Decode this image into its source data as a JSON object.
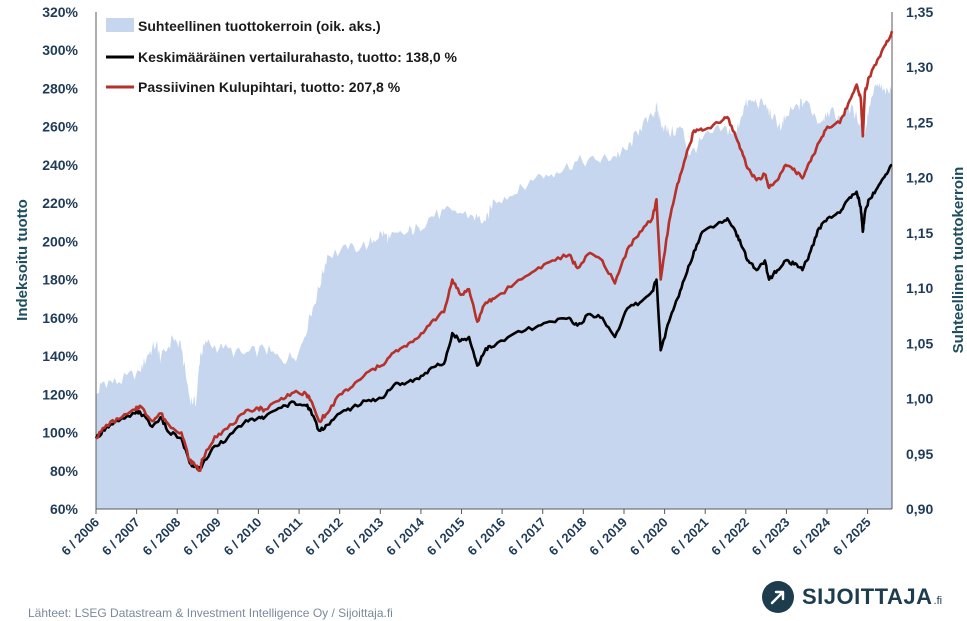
{
  "chart_data": {
    "type": "line",
    "title": "",
    "ylabel": "Indeksoitu tuotto",
    "y2label": "Suhteellinen tuottokerroin",
    "ylim": [
      60,
      320
    ],
    "y2lim": [
      0.9,
      1.35
    ],
    "yticks": [
      "60%",
      "80%",
      "100%",
      "120%",
      "140%",
      "160%",
      "180%",
      "200%",
      "220%",
      "240%",
      "260%",
      "280%",
      "300%",
      "320%"
    ],
    "y2ticks": [
      "0,90",
      "0,95",
      "1,00",
      "1,05",
      "1,10",
      "1,15",
      "1,20",
      "1,25",
      "1,30",
      "1,35"
    ],
    "xticks": [
      "6 / 2006",
      "6 / 2007",
      "6 / 2008",
      "6 / 2009",
      "6 / 2010",
      "6 / 2011",
      "6 / 2012",
      "6 / 2013",
      "6 / 2014",
      "6 / 2015",
      "6 / 2016",
      "6 / 2017",
      "6 / 2018",
      "6 / 2019",
      "6 / 2020",
      "6 / 2021",
      "6 / 2022",
      "6 / 2023",
      "6 / 2024",
      "6 / 2025"
    ],
    "legend_position": "top-left",
    "grid": false,
    "series": [
      {
        "name": "Suhteellinen tuottokerroin (oik. aks.)",
        "kind": "area",
        "axis": "right",
        "color": "#c5d6ee",
        "x": [
          2006.45,
          2006.6,
          2007.0,
          2007.5,
          2007.7,
          2007.9,
          2008.0,
          2008.3,
          2008.5,
          2008.7,
          2008.85,
          2008.95,
          2009.1,
          2009.5,
          2010.0,
          2010.5,
          2010.9,
          2011.3,
          2011.6,
          2011.8,
          2012.0,
          2012.5,
          2013.0,
          2013.3,
          2013.5,
          2013.9,
          2014.2,
          2014.5,
          2015.0,
          2015.5,
          2015.8,
          2016.0,
          2016.5,
          2017.0,
          2017.5,
          2018.0,
          2018.5,
          2018.9,
          2019.2,
          2019.5,
          2019.8,
          2019.9,
          2020.0,
          2020.2,
          2020.5,
          2020.7,
          2021.0,
          2021.5,
          2021.8,
          2022.0,
          2022.2,
          2022.5,
          2022.7,
          2022.9,
          2023.0,
          2023.3,
          2023.5,
          2023.8,
          2024.0,
          2024.3,
          2024.5,
          2024.8,
          2024.9,
          2025.0,
          2025.2,
          2025.4,
          2025.55
        ],
        "values": [
          1.0,
          1.015,
          1.015,
          1.025,
          1.04,
          1.05,
          1.035,
          1.055,
          1.045,
          1.0,
          0.995,
          1.04,
          1.05,
          1.045,
          1.04,
          1.045,
          1.035,
          1.04,
          1.075,
          1.1,
          1.13,
          1.135,
          1.14,
          1.15,
          1.145,
          1.15,
          1.155,
          1.165,
          1.17,
          1.165,
          1.16,
          1.18,
          1.185,
          1.2,
          1.205,
          1.215,
          1.215,
          1.22,
          1.225,
          1.245,
          1.255,
          1.265,
          1.25,
          1.24,
          1.245,
          1.22,
          1.235,
          1.245,
          1.24,
          1.265,
          1.27,
          1.265,
          1.255,
          1.245,
          1.255,
          1.265,
          1.27,
          1.25,
          1.26,
          1.255,
          1.265,
          1.25,
          1.24,
          1.265,
          1.285,
          1.275,
          1.28
        ]
      },
      {
        "name": "Keskimääräinen vertailurahasto, tuotto: 138,0 %",
        "kind": "line",
        "axis": "left",
        "color": "#000000",
        "x": [
          2006.45,
          2006.7,
          2007.0,
          2007.4,
          2007.5,
          2007.8,
          2008.0,
          2008.2,
          2008.5,
          2008.7,
          2008.8,
          2008.95,
          2009.0,
          2009.3,
          2009.6,
          2010.0,
          2010.3,
          2010.5,
          2010.9,
          2011.2,
          2011.5,
          2011.6,
          2011.8,
          2012.0,
          2012.3,
          2012.6,
          2013.0,
          2013.3,
          2013.6,
          2013.9,
          2014.2,
          2014.5,
          2014.8,
          2015.0,
          2015.2,
          2015.4,
          2015.6,
          2015.8,
          2016.0,
          2016.5,
          2017.0,
          2017.4,
          2017.8,
          2018.0,
          2018.3,
          2018.6,
          2018.9,
          2019.2,
          2019.5,
          2019.8,
          2019.9,
          2020.0,
          2020.2,
          2020.4,
          2020.6,
          2020.8,
          2021.0,
          2021.4,
          2021.6,
          2021.8,
          2021.95,
          2022.1,
          2022.3,
          2022.5,
          2022.6,
          2022.8,
          2023.0,
          2023.2,
          2023.4,
          2023.6,
          2023.8,
          2024.0,
          2024.3,
          2024.5,
          2024.7,
          2024.8,
          2024.85,
          2024.9,
          2025.0,
          2025.2,
          2025.4,
          2025.55
        ],
        "values": [
          97,
          103,
          106,
          110,
          111,
          103,
          108,
          100,
          97,
          84,
          82,
          81,
          83,
          93,
          97,
          105,
          107,
          108,
          113,
          116,
          114,
          112,
          101,
          104,
          110,
          113,
          117,
          118,
          125,
          126,
          128,
          134,
          136,
          152,
          148,
          150,
          135,
          144,
          145,
          152,
          155,
          158,
          160,
          156,
          162,
          160,
          150,
          165,
          168,
          174,
          180,
          143,
          158,
          170,
          182,
          195,
          205,
          210,
          212,
          205,
          197,
          190,
          185,
          190,
          180,
          185,
          190,
          188,
          185,
          195,
          207,
          212,
          215,
          222,
          226,
          218,
          205,
          215,
          222,
          228,
          235,
          240
        ]
      },
      {
        "name": "Passiivinen Kulupihtari, tuotto: 207,8 %",
        "kind": "line",
        "axis": "left",
        "color": "#b5312a",
        "x": [
          2006.45,
          2006.7,
          2007.0,
          2007.4,
          2007.5,
          2007.8,
          2008.0,
          2008.2,
          2008.5,
          2008.7,
          2008.8,
          2008.95,
          2009.0,
          2009.3,
          2009.6,
          2010.0,
          2010.3,
          2010.5,
          2010.9,
          2011.2,
          2011.5,
          2011.6,
          2011.8,
          2012.0,
          2012.3,
          2012.6,
          2013.0,
          2013.3,
          2013.6,
          2013.9,
          2014.2,
          2014.5,
          2014.8,
          2015.0,
          2015.2,
          2015.4,
          2015.6,
          2015.8,
          2016.0,
          2016.5,
          2017.0,
          2017.4,
          2017.8,
          2018.0,
          2018.3,
          2018.6,
          2018.9,
          2019.2,
          2019.5,
          2019.8,
          2019.9,
          2020.0,
          2020.2,
          2020.4,
          2020.6,
          2020.8,
          2021.0,
          2021.4,
          2021.6,
          2021.8,
          2021.95,
          2022.1,
          2022.3,
          2022.5,
          2022.6,
          2022.8,
          2023.0,
          2023.2,
          2023.4,
          2023.6,
          2023.8,
          2024.0,
          2024.3,
          2024.5,
          2024.7,
          2024.8,
          2024.85,
          2024.9,
          2025.0,
          2025.2,
          2025.4,
          2025.55
        ],
        "values": [
          97,
          104,
          107,
          112,
          114,
          106,
          110,
          104,
          100,
          85,
          84,
          80,
          86,
          98,
          102,
          110,
          113,
          112,
          118,
          121,
          120,
          117,
          106,
          110,
          120,
          124,
          132,
          135,
          142,
          145,
          150,
          158,
          163,
          180,
          172,
          175,
          158,
          168,
          170,
          178,
          185,
          190,
          193,
          186,
          194,
          190,
          178,
          196,
          205,
          212,
          222,
          180,
          210,
          230,
          244,
          258,
          258,
          262,
          265,
          255,
          247,
          238,
          232,
          235,
          228,
          232,
          240,
          238,
          233,
          242,
          252,
          260,
          262,
          272,
          282,
          275,
          255,
          278,
          286,
          295,
          303,
          310
        ]
      }
    ]
  },
  "footer": {
    "source": "Lähteet: LSEG Datastream & Investment Intelligence Oy / Sijoittaja.fi"
  },
  "logo": {
    "name": "SIJOITTAJA",
    "suffix": ".fi"
  }
}
